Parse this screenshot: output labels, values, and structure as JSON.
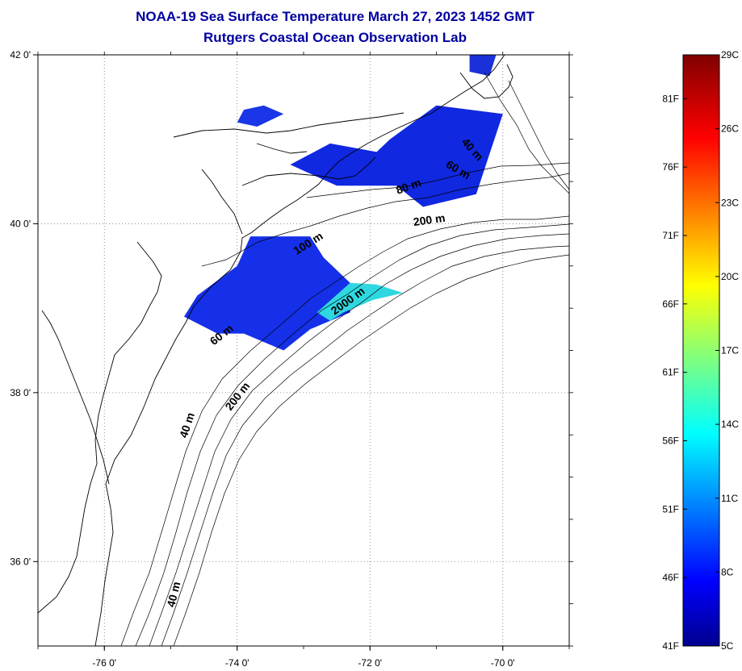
{
  "title": "NOAA-19 Sea Surface Temperature March 27, 2023 1452 GMT",
  "subtitle": "Rutgers Coastal Ocean Observation Lab",
  "map": {
    "lon_range": [
      -77,
      -69
    ],
    "lat_range": [
      35,
      42
    ],
    "grid": "dotted",
    "lon_ticks": [
      {
        "value": -76,
        "label": "-76 0'"
      },
      {
        "value": -74,
        "label": "-74 0'"
      },
      {
        "value": -72,
        "label": "-72 0'"
      },
      {
        "value": -70,
        "label": "-70 0'"
      }
    ],
    "lat_ticks": [
      {
        "value": 42,
        "label": "42 0'"
      },
      {
        "value": 40,
        "label": "40 0'"
      },
      {
        "value": 38,
        "label": "38 0'"
      },
      {
        "value": 36,
        "label": "36 0'"
      }
    ],
    "contour_labels": [
      {
        "text": "40 m",
        "lon": -70.5,
        "lat": 40.85,
        "angle": 48
      },
      {
        "text": "60 m",
        "lon": -70.7,
        "lat": 40.6,
        "angle": 30
      },
      {
        "text": "80 m",
        "lon": -71.4,
        "lat": 40.4,
        "angle": -20
      },
      {
        "text": "200 m",
        "lon": -71.1,
        "lat": 40.0,
        "angle": -8
      },
      {
        "text": "100 m",
        "lon": -72.9,
        "lat": 39.73,
        "angle": -32
      },
      {
        "text": "2000 m",
        "lon": -72.3,
        "lat": 39.05,
        "angle": -36
      },
      {
        "text": "60 m",
        "lon": -74.2,
        "lat": 38.65,
        "angle": -38
      },
      {
        "text": "200 m",
        "lon": -73.95,
        "lat": 37.93,
        "angle": -52
      },
      {
        "text": "40 m",
        "lon": -74.7,
        "lat": 37.6,
        "angle": -72
      },
      {
        "text": "40 m",
        "lon": -74.9,
        "lat": 35.6,
        "angle": -76
      }
    ],
    "sst_patches": [
      {
        "temp_c": 7.5,
        "color": "#1028e0",
        "points": [
          [
            -71.7,
            41.0
          ],
          [
            -71.0,
            41.4
          ],
          [
            -70.0,
            41.3
          ],
          [
            -70.4,
            40.35
          ],
          [
            -71.2,
            40.2
          ],
          [
            -71.6,
            40.45
          ],
          [
            -72.5,
            40.45
          ],
          [
            -73.2,
            40.7
          ],
          [
            -72.6,
            40.95
          ],
          [
            -71.9,
            40.85
          ]
        ]
      },
      {
        "temp_c": 7.5,
        "color": "#1530e8",
        "points": [
          [
            -73.8,
            39.85
          ],
          [
            -72.9,
            39.85
          ],
          [
            -72.7,
            39.6
          ],
          [
            -72.3,
            39.3
          ],
          [
            -72.3,
            38.95
          ],
          [
            -72.9,
            38.75
          ],
          [
            -73.3,
            38.5
          ],
          [
            -73.9,
            38.7
          ],
          [
            -74.3,
            38.7
          ],
          [
            -74.8,
            38.9
          ],
          [
            -74.6,
            39.15
          ],
          [
            -74.0,
            39.5
          ]
        ]
      },
      {
        "temp_c": 7,
        "color": "#1a36e6",
        "points": [
          [
            -74.0,
            41.2
          ],
          [
            -73.7,
            41.15
          ],
          [
            -73.3,
            41.3
          ],
          [
            -73.6,
            41.4
          ],
          [
            -73.9,
            41.35
          ]
        ]
      },
      {
        "temp_c": 7,
        "color": "#1a30d8",
        "points": [
          [
            -70.5,
            42.0
          ],
          [
            -70.1,
            42.0
          ],
          [
            -70.2,
            41.75
          ],
          [
            -70.5,
            41.8
          ]
        ]
      },
      {
        "temp_c": 12.5,
        "color": "#2fd8e0",
        "points": [
          [
            -72.8,
            38.95
          ],
          [
            -72.3,
            39.3
          ],
          [
            -71.9,
            39.28
          ],
          [
            -71.5,
            39.18
          ],
          [
            -71.95,
            39.1
          ],
          [
            -72.4,
            38.95
          ],
          [
            -72.6,
            38.85
          ]
        ]
      }
    ]
  },
  "colorbar": {
    "min_c": 5,
    "max_c": 29,
    "colormap": "jet",
    "celsius_ticks": [
      {
        "value": 29,
        "label": "29C"
      },
      {
        "value": 26,
        "label": "26C"
      },
      {
        "value": 23,
        "label": "23C"
      },
      {
        "value": 20,
        "label": "20C"
      },
      {
        "value": 17,
        "label": "17C"
      },
      {
        "value": 14,
        "label": "14C"
      },
      {
        "value": 11,
        "label": "11C"
      },
      {
        "value": 8,
        "label": "8C"
      },
      {
        "value": 5,
        "label": "5C"
      }
    ],
    "fahrenheit_ticks": [
      {
        "value": 81,
        "label": "81F"
      },
      {
        "value": 76,
        "label": "76F"
      },
      {
        "value": 71,
        "label": "71F"
      },
      {
        "value": 66,
        "label": "66F"
      },
      {
        "value": 61,
        "label": "61F"
      },
      {
        "value": 56,
        "label": "56F"
      },
      {
        "value": 51,
        "label": "51F"
      },
      {
        "value": 46,
        "label": "46F"
      },
      {
        "value": 41,
        "label": "41F"
      }
    ]
  }
}
